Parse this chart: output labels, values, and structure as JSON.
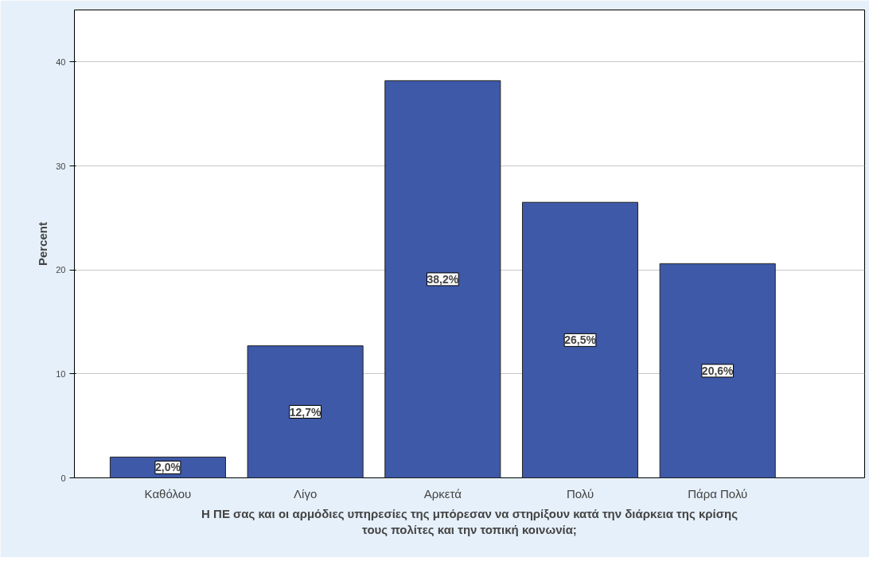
{
  "chart_data": {
    "type": "bar",
    "xlabel": "Η ΠΕ σας και οι αρμόδιες υπηρεσίες της μπόρεσαν να στηρίξουν κατά την διάρκεια της κρίσης\nτους πολίτες και την τοπική κοινωνία;",
    "ylabel": "Percent",
    "categories": [
      "Καθόλου",
      "Λίγο",
      "Αρκετά",
      "Πολύ",
      "Πάρα Πολύ"
    ],
    "values": [
      2.0,
      12.7,
      38.2,
      26.5,
      20.6
    ],
    "value_labels": [
      "2,0%",
      "12,7%",
      "38,2%",
      "26,5%",
      "20,6%"
    ],
    "color": "#3d59a8",
    "ylim": [
      0,
      45
    ],
    "yticks": [
      0,
      10,
      20,
      30,
      40
    ],
    "grid": "y"
  }
}
